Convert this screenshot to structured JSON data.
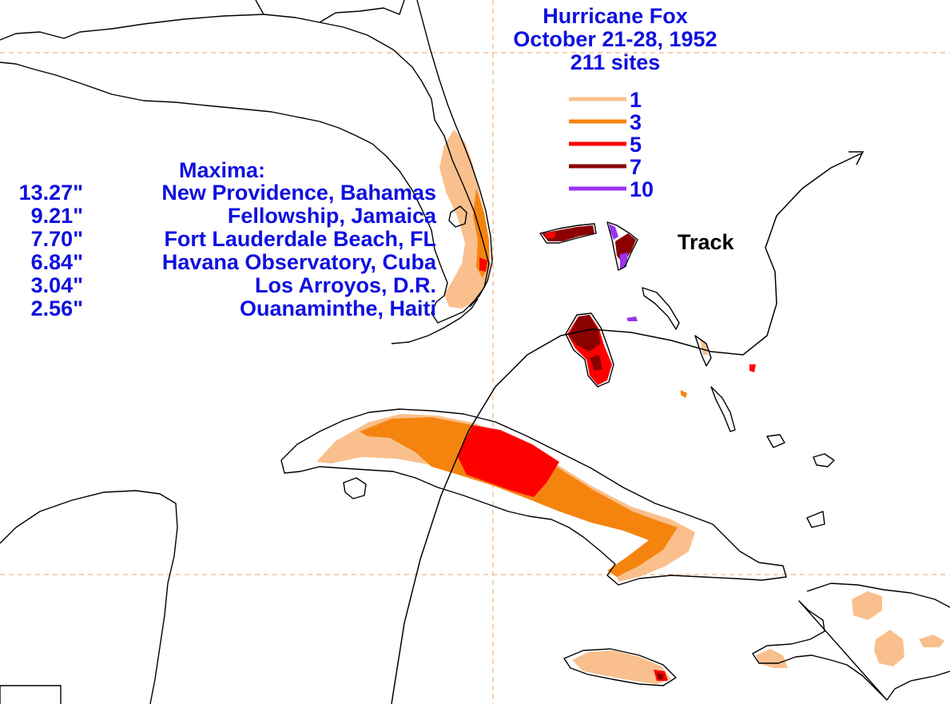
{
  "title": {
    "line1": "Hurricane Fox",
    "line2": "October 21-28, 1952",
    "line3": "211 sites"
  },
  "legend": [
    {
      "label": "1",
      "color": "#f9c08d"
    },
    {
      "label": "3",
      "color": "#f5840f"
    },
    {
      "label": "5",
      "color": "#ff0000"
    },
    {
      "label": "7",
      "color": "#8b0000"
    },
    {
      "label": "10",
      "color": "#9933ee"
    }
  ],
  "maxima": {
    "heading": "Maxima:",
    "rows": [
      {
        "value": "13.27\"",
        "place": "New Providence, Bahamas"
      },
      {
        "value": "9.21\"",
        "place": "Fellowship, Jamaica"
      },
      {
        "value": "7.70\"",
        "place": "Fort Lauderdale Beach, FL"
      },
      {
        "value": "6.84\"",
        "place": "Havana Observatory, Cuba"
      },
      {
        "value": "3.04\"",
        "place": "Los Arroyos, D.R."
      },
      {
        "value": "2.56\"",
        "place": "Ouanaminthe, Haiti"
      }
    ]
  },
  "track_label": "Track",
  "colors": {
    "text": "#1010e0",
    "grid": "#f0a060",
    "coast": "#000000"
  }
}
